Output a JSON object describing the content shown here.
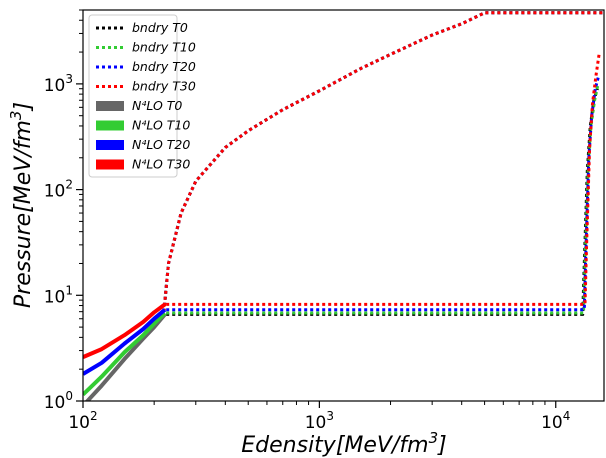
{
  "chart_data": {
    "type": "line",
    "xlabel": "Edensity[MeV/fm³]",
    "ylabel": "Pressure[MeV/fm³]",
    "xscale": "log",
    "yscale": "log",
    "xlim": [
      100,
      16000
    ],
    "ylim": [
      1,
      5000
    ],
    "x_major_ticks": [
      {
        "value": 100,
        "base": "10",
        "exp": "2"
      },
      {
        "value": 1000,
        "base": "10",
        "exp": "3"
      },
      {
        "value": 10000,
        "base": "10",
        "exp": "4"
      }
    ],
    "y_major_ticks": [
      {
        "value": 1,
        "base": "10",
        "exp": "0"
      },
      {
        "value": 10,
        "base": "10",
        "exp": "1"
      },
      {
        "value": 100,
        "base": "10",
        "exp": "2"
      },
      {
        "value": 1000,
        "base": "10",
        "exp": "3"
      }
    ],
    "legend_position": "top-left",
    "grid": false,
    "series": [
      {
        "name": "bndry T0",
        "style": "dotted",
        "color": "#000000",
        "x": [
          220,
          230,
          260,
          300,
          400,
          500,
          700,
          1000,
          1500,
          2000,
          3000,
          4000,
          5000,
          16000
        ],
        "y": [
          7.0,
          20,
          60,
          120,
          250,
          360,
          570,
          860,
          1400,
          1900,
          2900,
          3700,
          4700,
          4700
        ]
      },
      {
        "name": "bndry T10",
        "style": "dotted",
        "color": "#33cc33",
        "x": [
          220,
          230,
          260,
          300,
          400,
          500,
          700,
          1000,
          1500,
          2000,
          3000,
          4000,
          5000,
          16000
        ],
        "y": [
          7.0,
          20,
          60,
          120,
          250,
          360,
          570,
          860,
          1400,
          1900,
          2900,
          3700,
          4700,
          4700
        ]
      },
      {
        "name": "bndry T20",
        "style": "dotted",
        "color": "#0000ff",
        "x": [
          220,
          230,
          260,
          300,
          400,
          500,
          700,
          1000,
          1500,
          2000,
          3000,
          4000,
          5000,
          16000
        ],
        "y": [
          7.0,
          20,
          60,
          120,
          250,
          360,
          570,
          860,
          1400,
          1900,
          2900,
          3700,
          4700,
          4700
        ]
      },
      {
        "name": "bndry T30",
        "style": "dotted",
        "color": "#ff0000",
        "x": [
          220,
          230,
          260,
          300,
          400,
          500,
          700,
          1000,
          1500,
          2000,
          3000,
          4000,
          5000,
          16000
        ],
        "y": [
          7.0,
          20,
          60,
          120,
          250,
          360,
          570,
          860,
          1400,
          1900,
          2900,
          3700,
          4700,
          4700
        ]
      },
      {
        "name": "bndry T0 (lower)",
        "style": "dotted",
        "color": "#000000",
        "legend": false,
        "x": [
          225,
          13000,
          13200,
          13600,
          14000,
          14500,
          15000
        ],
        "y": [
          6.6,
          6.6,
          20,
          150,
          400,
          700,
          900
        ]
      },
      {
        "name": "bndry T10 (lower)",
        "style": "dotted",
        "color": "#33cc33",
        "legend": false,
        "x": [
          225,
          13100,
          13300,
          13700,
          14100,
          14600,
          15100
        ],
        "y": [
          6.8,
          6.8,
          20,
          150,
          400,
          700,
          1000
        ]
      },
      {
        "name": "bndry T20 (lower)",
        "style": "dotted",
        "color": "#0000ff",
        "legend": false,
        "x": [
          225,
          13200,
          13400,
          13800,
          14200,
          14700,
          15200
        ],
        "y": [
          7.3,
          7.3,
          25,
          200,
          500,
          900,
          1200
        ]
      },
      {
        "name": "bndry T30 (lower)",
        "style": "dotted",
        "color": "#ff0000",
        "legend": false,
        "x": [
          225,
          13300,
          13500,
          13900,
          14300,
          14800,
          15300
        ],
        "y": [
          8.2,
          8.2,
          30,
          250,
          650,
          1200,
          2000
        ]
      },
      {
        "name": "N⁴LO T0",
        "style": "solid",
        "color": "#666666",
        "x": [
          100,
          120,
          150,
          180,
          200,
          222
        ],
        "y": [
          0.9,
          1.4,
          2.5,
          3.9,
          5.0,
          6.6
        ]
      },
      {
        "name": "N⁴LO T10",
        "style": "solid",
        "color": "#33cc33",
        "x": [
          100,
          120,
          150,
          180,
          200,
          222
        ],
        "y": [
          1.15,
          1.7,
          2.9,
          4.2,
          5.4,
          6.8
        ]
      },
      {
        "name": "N⁴LO T20",
        "style": "solid",
        "color": "#0000ff",
        "x": [
          100,
          120,
          150,
          180,
          200,
          222
        ],
        "y": [
          1.8,
          2.3,
          3.5,
          4.8,
          6.0,
          7.3
        ]
      },
      {
        "name": "N⁴LO T30",
        "style": "solid",
        "color": "#ff0000",
        "x": [
          100,
          120,
          150,
          180,
          200,
          222
        ],
        "y": [
          2.6,
          3.1,
          4.2,
          5.6,
          6.9,
          8.2
        ]
      }
    ]
  }
}
